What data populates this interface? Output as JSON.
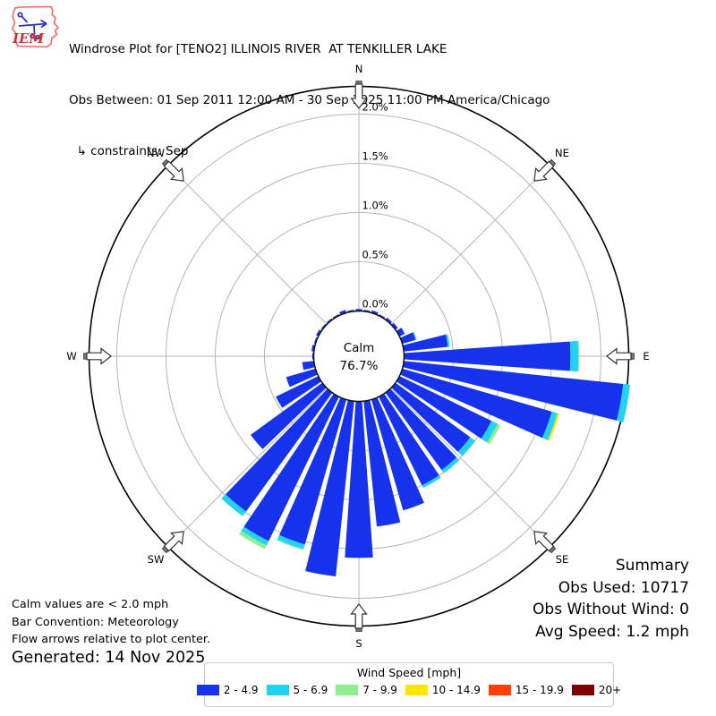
{
  "header": {
    "logo_text": "IEM",
    "title": "Windrose Plot for [TENO2] ILLINOIS RIVER  AT TENKILLER LAKE",
    "subtitle": "Obs Between: 01 Sep 2011 12:00 AM - 30 Sep 2025 11:00 PM America/Chicago",
    "constraints": "  ↳ constraints: Sep"
  },
  "summary": {
    "title": "Summary",
    "obs_used": "Obs Used: 10717",
    "obs_without_wind": "Obs Without Wind: 0",
    "avg_speed": "Avg Speed: 1.2 mph"
  },
  "notes": {
    "line1": "Calm values are < 2.0 mph",
    "line2": "Bar Convention: Meteorology",
    "line3": "Flow arrows relative to plot center.",
    "generated": "Generated: 14 Nov 2025"
  },
  "legend": {
    "title": "Wind Speed [mph]"
  },
  "chart_data": {
    "type": "windrose",
    "units": "mph",
    "nsectors": 36,
    "sector_width_deg": 8,
    "calm": {
      "line1": "Calm",
      "line2": "76.7%"
    },
    "radial_ticks": [
      "0.0%",
      "0.5%",
      "1.0%",
      "1.5%",
      "2.0%"
    ],
    "ring_step_pct": 0.5,
    "radial_max_pct": 2.0,
    "compass_labels": [
      "N",
      "NE",
      "E",
      "SE",
      "S",
      "SW",
      "W",
      "NW"
    ],
    "directions_deg": [
      0,
      10,
      20,
      30,
      40,
      50,
      60,
      70,
      80,
      90,
      100,
      110,
      120,
      130,
      140,
      150,
      160,
      170,
      180,
      190,
      200,
      210,
      220,
      230,
      240,
      250,
      260,
      270,
      280,
      290,
      300,
      310,
      320,
      330,
      340,
      350
    ],
    "speed_bins": [
      {
        "label": "2 - 4.9",
        "color": "#1633EB",
        "values": [
          0.02,
          0.015,
          0.025,
          0.015,
          0.025,
          0.03,
          0.06,
          0.14,
          0.45,
          1.69,
          2.24,
          1.58,
          1.04,
          0.94,
          0.97,
          1.0,
          1.17,
          1.28,
          1.59,
          1.79,
          1.53,
          1.63,
          1.49,
          0.9,
          0.48,
          0.31,
          0.12,
          0.015,
          0.025,
          0.015,
          0.025,
          0.015,
          0.015,
          0.015,
          0.03,
          0.015
        ]
      },
      {
        "label": "5 - 6.9",
        "color": "#22D2F0",
        "values": [
          0,
          0,
          0,
          0,
          0,
          0,
          0,
          0.01,
          0.02,
          0.08,
          0.07,
          0.06,
          0.07,
          0.06,
          0.04,
          0.03,
          0,
          0,
          0,
          0,
          0.05,
          0.05,
          0.06,
          0,
          0,
          0,
          0,
          0,
          0,
          0,
          0,
          0,
          0,
          0,
          0,
          0
        ]
      },
      {
        "label": "7 - 9.9",
        "color": "#90EE90",
        "values": [
          0,
          0,
          0,
          0,
          0,
          0,
          0,
          0,
          0,
          0.01,
          0,
          0,
          0.03,
          0,
          0,
          0,
          0,
          0,
          0,
          0,
          0.01,
          0.04,
          0,
          0,
          0,
          0,
          0,
          0,
          0,
          0,
          0,
          0,
          0,
          0,
          0,
          0
        ]
      },
      {
        "label": "10 - 14.9",
        "color": "#FFE400",
        "values": [
          0,
          0,
          0,
          0,
          0,
          0,
          0,
          0,
          0,
          0,
          0,
          0.02,
          0,
          0,
          0,
          0,
          0,
          0,
          0,
          0,
          0,
          0,
          0,
          0,
          0,
          0,
          0,
          0,
          0,
          0,
          0,
          0,
          0,
          0,
          0,
          0
        ]
      },
      {
        "label": "15 - 19.9",
        "color": "#FF4000",
        "values": [
          0,
          0,
          0,
          0,
          0,
          0,
          0,
          0,
          0,
          0,
          0,
          0,
          0,
          0,
          0,
          0,
          0,
          0,
          0,
          0,
          0,
          0,
          0,
          0,
          0,
          0,
          0,
          0,
          0,
          0,
          0,
          0,
          0,
          0,
          0,
          0
        ]
      },
      {
        "label": "20+",
        "color": "#7E0000",
        "values": [
          0,
          0,
          0,
          0,
          0,
          0,
          0,
          0,
          0,
          0,
          0,
          0,
          0,
          0,
          0,
          0,
          0,
          0,
          0,
          0,
          0,
          0,
          0,
          0,
          0,
          0,
          0,
          0,
          0,
          0,
          0,
          0,
          0,
          0,
          0,
          0
        ]
      }
    ],
    "grid_color": "#b5b5b5",
    "outer_circle_color": "#000000"
  }
}
